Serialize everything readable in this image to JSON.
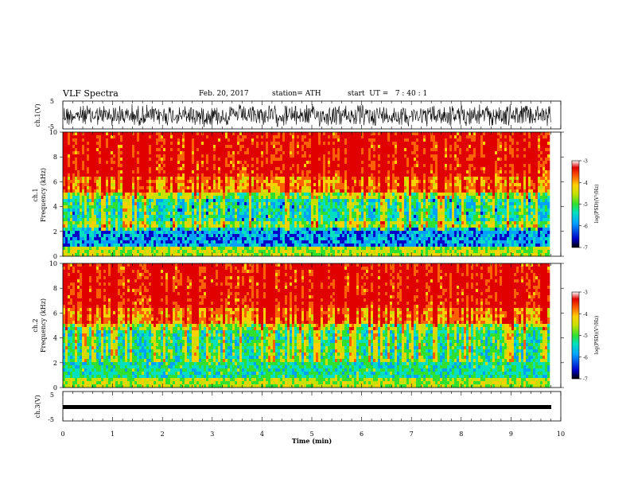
{
  "header": {
    "title": "VLF Spectra",
    "date": "Feb. 20, 2017",
    "station": "station= ATH",
    "start": "start  UT =   7 : 40 : 1"
  },
  "colorbar": {
    "label": "log(PSD)(V²/Hz)",
    "ticks": [
      "-3",
      "-4",
      "-5",
      "-6",
      "-7"
    ],
    "range": [
      -7,
      -3
    ],
    "colors": [
      "#000000",
      "#0000c8",
      "#00a0ff",
      "#00e0c0",
      "#30e030",
      "#c8e000",
      "#ffd000",
      "#ff6000",
      "#e00000",
      "#ffffff"
    ]
  },
  "chart_data": [
    {
      "type": "line",
      "name": "ch.1 waveform",
      "ylabel": "ch.1(V)",
      "ylim": [
        -5,
        5
      ],
      "yticks": [
        "5",
        "-5"
      ],
      "xlim": [
        0,
        10
      ],
      "description_values": {
        "center": 0,
        "typical_amplitude": 2.5
      }
    },
    {
      "type": "heatmap",
      "name": "ch.1 spectrogram",
      "ylabel_line1": "ch.1",
      "ylabel_line2": "Frequency  (kHz)",
      "ylim": [
        0,
        10
      ],
      "yticks": [
        "0",
        "2",
        "4",
        "6",
        "8",
        "10"
      ],
      "xlim": [
        0,
        10
      ],
      "z_range": [
        -7,
        -3
      ]
    },
    {
      "type": "heatmap",
      "name": "ch.2 spectrogram",
      "ylabel_line1": "ch.2",
      "ylabel_line2": "Frequency  (kHz)",
      "ylim": [
        0,
        10
      ],
      "yticks": [
        "0",
        "2",
        "4",
        "6",
        "8",
        "10"
      ],
      "xlim": [
        0,
        10
      ],
      "z_range": [
        -7,
        -3
      ]
    },
    {
      "type": "line",
      "name": "ch.3 waveform",
      "ylabel": "ch.3(V)",
      "ylim": [
        -5,
        5
      ],
      "yticks": [
        "5",
        "-5"
      ],
      "xlim": [
        0,
        10
      ],
      "description_values": {
        "center": 0,
        "typical_amplitude": 0.3
      }
    }
  ],
  "xaxis": {
    "label": "Time  (min)",
    "ticks": [
      "0",
      "1",
      "2",
      "3",
      "4",
      "5",
      "6",
      "7",
      "8",
      "9",
      "10"
    ]
  }
}
